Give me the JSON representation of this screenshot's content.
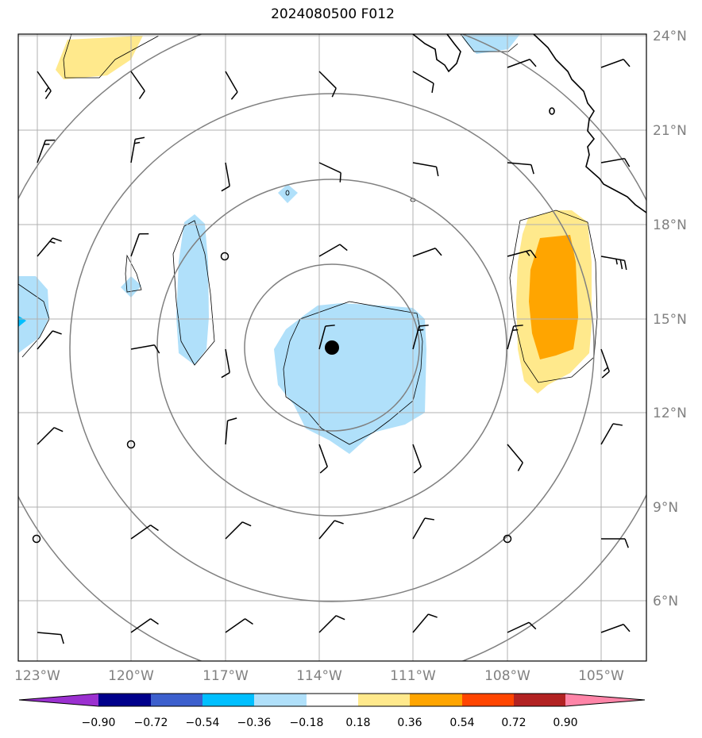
{
  "title": "2024080500 F012",
  "map": {
    "lon_labels": [
      "123°W",
      "120°W",
      "117°W",
      "114°W",
      "111°W",
      "108°W",
      "105°W"
    ],
    "lat_labels": [
      "24°N",
      "21°N",
      "18°N",
      "15°N",
      "12°N",
      "9°N",
      "6°N"
    ],
    "storm_center": {
      "lon": -113.6,
      "lat": 14.0
    },
    "range_ring_color": "#808080",
    "grid_color": "#b0b0b0",
    "coast_color": "#000000"
  },
  "colorbar": {
    "ticks": [
      "−0.90",
      "−0.72",
      "−0.54",
      "−0.36",
      "−0.18",
      "0.18",
      "0.36",
      "0.54",
      "0.72",
      "0.90"
    ],
    "colors": [
      "#9b30d0",
      "#00008b",
      "#3c5fcd",
      "#00bfff",
      "#b0e0fa",
      "#ffffff",
      "#ffe98c",
      "#ffa500",
      "#ff4500",
      "#b22222",
      "#ff85a8"
    ]
  },
  "shading": {
    "negative_light": "#b0e0fa",
    "negative_medium": "#00bfff",
    "positive_light": "#ffe98c",
    "positive_medium": "#ffa500"
  }
}
